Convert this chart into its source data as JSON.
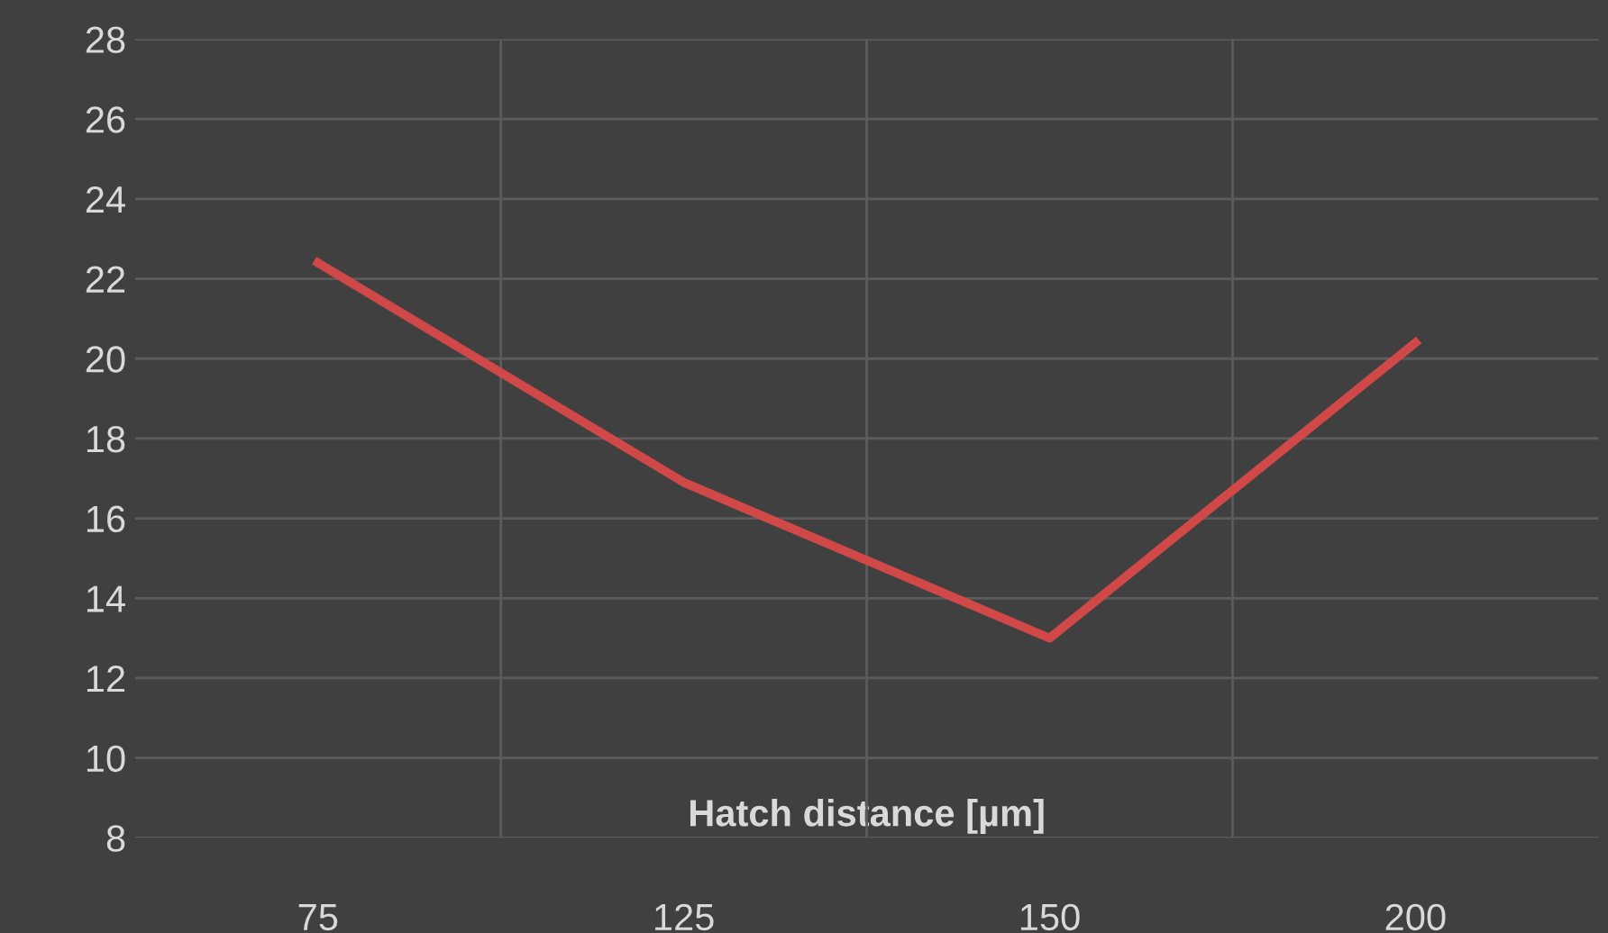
{
  "chart_data": {
    "type": "line",
    "xlabel": "Hatch distance [µm]",
    "categories": [
      "75",
      "125",
      "150",
      "200"
    ],
    "series": [
      {
        "color": "#d04848",
        "values": [
          22.4,
          16.9,
          13.0,
          20.4
        ]
      }
    ],
    "ylim": [
      8,
      28
    ],
    "yticks": [
      8,
      10,
      12,
      14,
      16,
      18,
      20,
      22,
      24,
      26,
      28
    ],
    "grid": true,
    "marker": "none",
    "line_style": "solid"
  }
}
